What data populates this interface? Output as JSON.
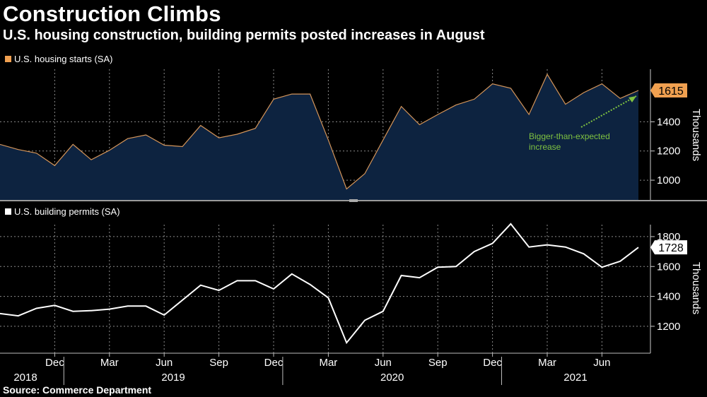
{
  "header": {
    "title": "Construction Climbs",
    "subtitle": "U.S. housing construction, building permits posted increases in August"
  },
  "footer": {
    "source": "Source: Commerce Department"
  },
  "colors": {
    "starts_line": "#d4955a",
    "starts_fill": "#0d2340",
    "starts_badge": "#f0a050",
    "permits_line": "#ffffff",
    "annotation": "#7fc241",
    "grid": "#8a8a8a"
  },
  "chart_data": [
    {
      "type": "area",
      "title": "U.S. housing starts (SA)",
      "legend": "U.S. housing starts (SA)",
      "ylabel": "Thousands",
      "ylim": [
        860,
        1760
      ],
      "yticks": [
        1000,
        1200,
        1400
      ],
      "yticklabels": [
        "1000",
        "1200",
        "1400"
      ],
      "x": [
        "2018-09",
        "2018-10",
        "2018-11",
        "2018-12",
        "2019-01",
        "2019-02",
        "2019-03",
        "2019-04",
        "2019-05",
        "2019-06",
        "2019-07",
        "2019-08",
        "2019-09",
        "2019-10",
        "2019-11",
        "2019-12",
        "2020-01",
        "2020-02",
        "2020-03",
        "2020-04",
        "2020-05",
        "2020-06",
        "2020-07",
        "2020-08",
        "2020-09",
        "2020-10",
        "2020-11",
        "2020-12",
        "2021-01",
        "2021-02",
        "2021-03",
        "2021-04",
        "2021-05",
        "2021-06",
        "2021-07",
        "2021-08"
      ],
      "values": [
        1245,
        1210,
        1185,
        1100,
        1245,
        1140,
        1205,
        1285,
        1310,
        1240,
        1230,
        1375,
        1290,
        1315,
        1355,
        1555,
        1590,
        1590,
        1275,
        940,
        1045,
        1275,
        1505,
        1380,
        1450,
        1515,
        1555,
        1660,
        1630,
        1450,
        1725,
        1520,
        1600,
        1660,
        1560,
        1615
      ],
      "last_value_label": "1615",
      "annotation": {
        "text_line1": "Bigger-than-expected",
        "text_line2": "increase"
      }
    },
    {
      "type": "line",
      "title": "U.S. building permits (SA)",
      "legend": "U.S. building permits (SA)",
      "ylabel": "Thousands",
      "ylim": [
        1020,
        1880
      ],
      "yticks": [
        1200,
        1400,
        1600,
        1800
      ],
      "yticklabels": [
        "1200",
        "1400",
        "1600",
        "1800"
      ],
      "x": [
        "2018-09",
        "2018-10",
        "2018-11",
        "2018-12",
        "2019-01",
        "2019-02",
        "2019-03",
        "2019-04",
        "2019-05",
        "2019-06",
        "2019-07",
        "2019-08",
        "2019-09",
        "2019-10",
        "2019-11",
        "2019-12",
        "2020-01",
        "2020-02",
        "2020-03",
        "2020-04",
        "2020-05",
        "2020-06",
        "2020-07",
        "2020-08",
        "2020-09",
        "2020-10",
        "2020-11",
        "2020-12",
        "2021-01",
        "2021-02",
        "2021-03",
        "2021-04",
        "2021-05",
        "2021-06",
        "2021-07",
        "2021-08"
      ],
      "values": [
        1285,
        1270,
        1320,
        1340,
        1300,
        1305,
        1315,
        1335,
        1335,
        1275,
        1375,
        1475,
        1440,
        1505,
        1505,
        1450,
        1550,
        1480,
        1390,
        1090,
        1240,
        1300,
        1540,
        1525,
        1595,
        1600,
        1700,
        1755,
        1885,
        1730,
        1745,
        1730,
        1685,
        1595,
        1635,
        1728
      ],
      "last_value_label": "1728"
    }
  ],
  "x_axis": {
    "month_ticks": [
      "Dec",
      "Mar",
      "Jun",
      "Sep",
      "Dec",
      "Mar",
      "Jun",
      "Sep",
      "Dec",
      "Mar",
      "Jun"
    ],
    "years": [
      "2018",
      "2019",
      "2020",
      "2021"
    ]
  }
}
